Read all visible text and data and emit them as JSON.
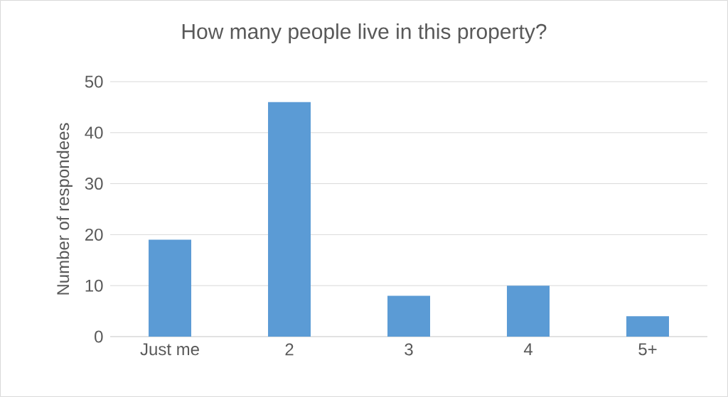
{
  "chart_data": {
    "type": "bar",
    "title": "How many people live in this property?",
    "ylabel": "Number of respondees",
    "categories": [
      "Just me",
      "2",
      "3",
      "4",
      "5+"
    ],
    "values": [
      19,
      46,
      8,
      10,
      4
    ],
    "color": "#5b9bd5",
    "ylim": [
      0,
      50
    ],
    "yticks": [
      0,
      10,
      20,
      30,
      40,
      50
    ],
    "grid": "y"
  }
}
